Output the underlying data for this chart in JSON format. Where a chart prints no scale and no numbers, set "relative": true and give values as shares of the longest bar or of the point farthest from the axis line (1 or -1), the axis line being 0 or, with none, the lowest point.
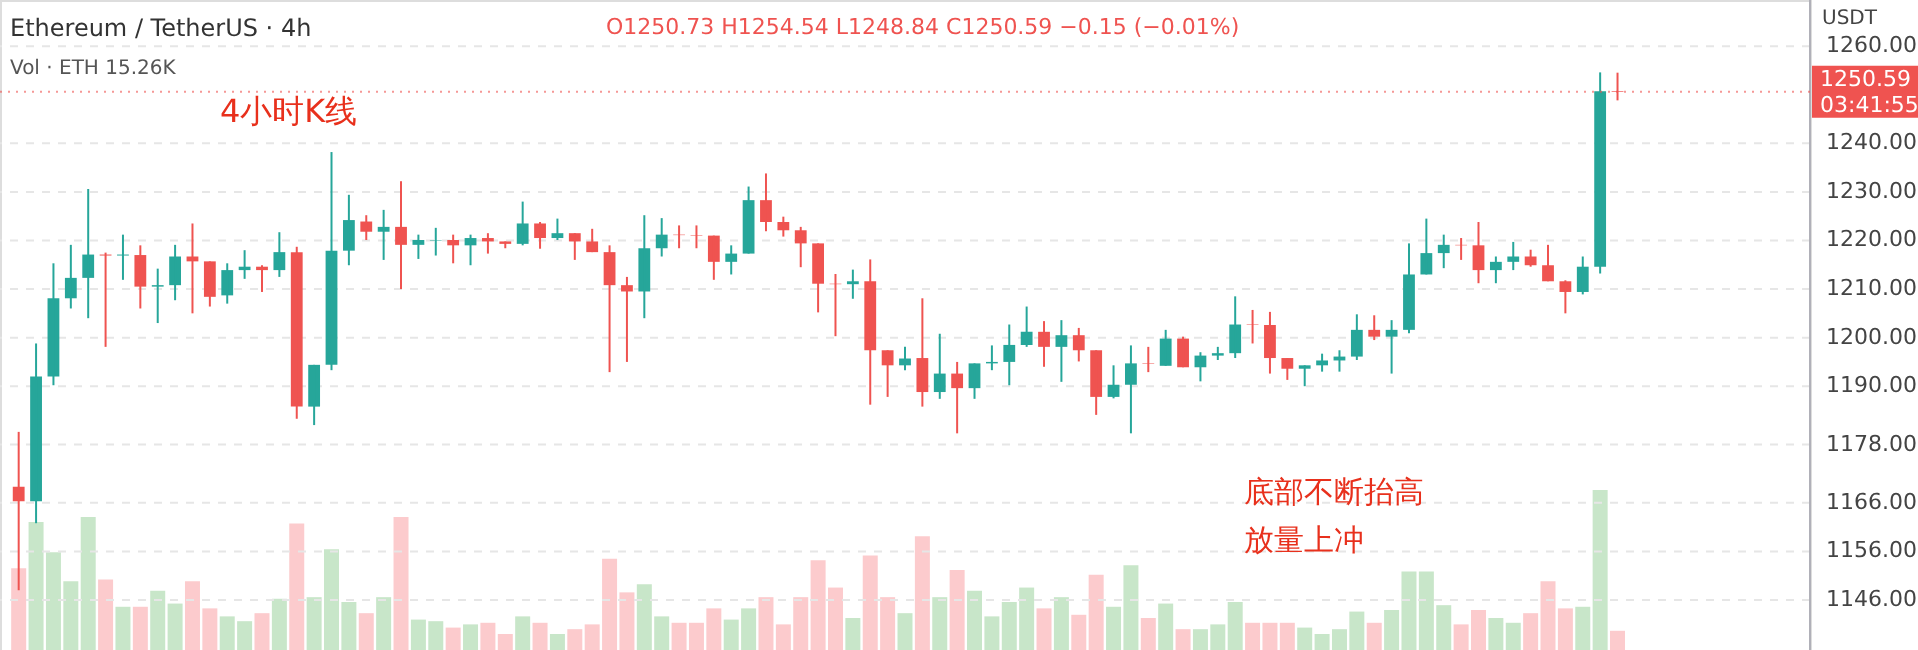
{
  "chart_data": [
    {
      "type": "candlestick",
      "title": "Ethereum / TetherUS · 4h",
      "subtitle": "O1250.73 H1254.54 L1248.84 C1250.59 −0.15 (−0.01%)",
      "ylabel": "USDT",
      "annotations": [
        "4小时K线",
        "底部不断抬高",
        "放量上冲"
      ],
      "categories": [
        null,
        null,
        null,
        null,
        null,
        null,
        null,
        null,
        null,
        null,
        null,
        null,
        null,
        null,
        null,
        null,
        null,
        null,
        null,
        null,
        null,
        null,
        null,
        null,
        null,
        null,
        null,
        null,
        null,
        null,
        null,
        null,
        null,
        null,
        null,
        null,
        null,
        null,
        null,
        null,
        null,
        null,
        null,
        null,
        null,
        null,
        null,
        null,
        null,
        null,
        null,
        null,
        null,
        null,
        null,
        null,
        null,
        null,
        null,
        null,
        null,
        null,
        null,
        null,
        null,
        null,
        null,
        null,
        null,
        null,
        null,
        null,
        null,
        null,
        null,
        null,
        null,
        null,
        null,
        null,
        null,
        null,
        null,
        null,
        null,
        null,
        null,
        null,
        null,
        null,
        null,
        null,
        null,
        null,
        null,
        null,
        null,
        null,
        null,
        null,
        null,
        null,
        null
      ],
      "ylim": [
        1135.7,
        1269.5
      ],
      "yticks": [
        {
          "value": 1146,
          "label": "1146.00"
        },
        {
          "value": 1156,
          "label": "1156.00"
        },
        {
          "value": 1166,
          "label": "1166.00"
        },
        {
          "value": 1178,
          "label": "1178.00"
        },
        {
          "value": 1190,
          "label": "1190.00"
        },
        {
          "value": 1200,
          "label": "1200.00"
        },
        {
          "value": 1210,
          "label": "1210.00"
        },
        {
          "value": 1220,
          "label": "1220.00"
        },
        {
          "value": 1230,
          "label": "1230.00"
        },
        {
          "value": 1240,
          "label": "1240.00"
        },
        {
          "value": 1260,
          "label": "1260.00"
        }
      ],
      "grid": "y",
      "ref_lines": [
        {
          "axis": "y",
          "value": 1250.59,
          "label": "1250.59 03:41:55",
          "color": "#ef5350",
          "line_style": "dotted"
        }
      ],
      "series": [
        {
          "colors": [
            "#ef5350",
            "#26a69a",
            "#26a69a",
            "#26a69a",
            "#26a69a",
            "#ef5350",
            "#26a69a",
            "#ef5350",
            "#26a69a",
            "#26a69a",
            "#ef5350",
            "#ef5350",
            "#26a69a",
            "#26a69a",
            "#ef5350",
            "#26a69a",
            "#ef5350",
            "#26a69a",
            "#26a69a",
            "#26a69a",
            "#ef5350",
            "#26a69a",
            "#ef5350",
            "#26a69a",
            "#26a69a",
            "#ef5350",
            "#26a69a",
            "#ef5350",
            "#ef5350",
            "#26a69a",
            "#ef5350",
            "#26a69a",
            "#ef5350",
            "#ef5350",
            "#ef5350",
            "#ef5350",
            "#26a69a",
            "#26a69a",
            "#ef5350",
            "#ef5350",
            "#ef5350",
            "#26a69a",
            "#26a69a",
            "#ef5350",
            "#ef5350",
            "#ef5350",
            "#ef5350",
            "#ef5350",
            "#26a69a",
            "#ef5350",
            "#ef5350",
            "#26a69a",
            "#ef5350",
            "#26a69a",
            "#ef5350",
            "#26a69a",
            "#26a69a",
            "#26a69a",
            "#26a69a",
            "#ef5350",
            "#26a69a",
            "#ef5350",
            "#ef5350",
            "#26a69a",
            "#26a69a",
            "#ef5350",
            "#26a69a",
            "#ef5350",
            "#26a69a",
            "#26a69a",
            "#26a69a",
            "#ef5350",
            "#ef5350",
            "#ef5350",
            "#26a69a",
            "#26a69a",
            "#26a69a",
            "#26a69a",
            "#ef5350",
            "#26a69a",
            "#26a69a",
            "#26a69a",
            "#26a69a",
            "#ef5350",
            "#ef5350",
            "#26a69a",
            "#26a69a",
            "#ef5350",
            "#ef5350",
            "#ef5350",
            "#26a69a",
            "#26a69a",
            "#ef5350",
            null,
            null,
            null,
            null,
            null,
            null,
            null,
            null,
            null,
            null
          ],
          "ohlc": [
            [
              1169.3,
              1180.6,
              1148,
              1166.3
            ],
            [
              1166.3,
              1198.8,
              1161.8,
              1192
            ],
            [
              1192,
              1215.3,
              1190.2,
              1208.1
            ],
            [
              1208.1,
              1219.1,
              1206,
              1212.3
            ],
            [
              1212.3,
              1230.6,
              1204,
              1217.1
            ],
            [
              1217.1,
              1217.5,
              1198.1,
              1216.9
            ],
            [
              1216.9,
              1221.2,
              1211.9,
              1217.1
            ],
            [
              1217,
              1219,
              1206,
              1210.5
            ],
            [
              1210.5,
              1214.2,
              1203,
              1210.8
            ],
            [
              1210.8,
              1219.1,
              1207.7,
              1216.7
            ],
            [
              1216.7,
              1223.5,
              1205,
              1215.7
            ],
            [
              1215.7,
              1215.7,
              1206.4,
              1208.4
            ],
            [
              1208.7,
              1215.3,
              1207,
              1213.9
            ],
            [
              1213.9,
              1218,
              1212.1,
              1214.6
            ],
            [
              1214.6,
              1214.9,
              1209.4,
              1213.9
            ],
            [
              1213.9,
              1221.7,
              1212.5,
              1217.6
            ],
            [
              1217.6,
              1218.7,
              1183.3,
              1185.8
            ],
            [
              1185.8,
              1194.4,
              1182,
              1194.4
            ],
            [
              1194.4,
              1238.2,
              1193.3,
              1217.9
            ],
            [
              1217.9,
              1229.4,
              1214.9,
              1224.2
            ],
            [
              1223.9,
              1225.2,
              1220.1,
              1221.8
            ],
            [
              1221.8,
              1226.3,
              1216,
              1222.8
            ],
            [
              1222.8,
              1232.2,
              1210,
              1219.1
            ],
            [
              1219.1,
              1221.2,
              1216.2,
              1220.1
            ],
            [
              1220,
              1222.6,
              1216.9,
              1220.1
            ],
            [
              1220.1,
              1221.2,
              1215.3,
              1219
            ],
            [
              1219,
              1221.2,
              1214.9,
              1220.5
            ],
            [
              1220.5,
              1221.5,
              1217.3,
              1219.8
            ],
            [
              1219.8,
              1219.8,
              1218.4,
              1219.3
            ],
            [
              1219.3,
              1228,
              1219,
              1223.5
            ],
            [
              1223.5,
              1223.8,
              1218.3,
              1220.5
            ],
            [
              1220.5,
              1224.5,
              1220.1,
              1221.5
            ],
            [
              1221.5,
              1221.5,
              1216,
              1219.8
            ],
            [
              1219.8,
              1222.4,
              1217.6,
              1217.6
            ],
            [
              1217.6,
              1219,
              1192.9,
              1210.8
            ],
            [
              1210.8,
              1212.5,
              1195,
              1209.5
            ],
            [
              1209.5,
              1225.2,
              1204,
              1218.4
            ],
            [
              1218.4,
              1224.6,
              1216.7,
              1221.2
            ],
            [
              1221.2,
              1223.1,
              1218.4,
              1221.1
            ],
            [
              1221.1,
              1223.1,
              1218.4,
              1221
            ],
            [
              1221,
              1221,
              1211.9,
              1215.6
            ],
            [
              1215.6,
              1219,
              1213,
              1217.3
            ],
            [
              1217.3,
              1231.1,
              1217.3,
              1228.3
            ],
            [
              1228.3,
              1233.8,
              1221.9,
              1223.8
            ],
            [
              1223.8,
              1224.9,
              1220.8,
              1222.1
            ],
            [
              1222.1,
              1222.8,
              1214.5,
              1219.4
            ],
            [
              1219.4,
              1219.4,
              1205.2,
              1211.1
            ],
            [
              1211.1,
              1213.1,
              1200.3,
              1211
            ],
            [
              1211,
              1214,
              1208,
              1211.6
            ],
            [
              1211.6,
              1216.1,
              1186.2,
              1197.4
            ],
            [
              1197.4,
              1197.4,
              1187.8,
              1194.3
            ],
            [
              1194.3,
              1198.1,
              1193.3,
              1195.7
            ],
            [
              1195.8,
              1208.1,
              1185.8,
              1188.8
            ],
            [
              1188.8,
              1200.8,
              1187.4,
              1192.6
            ],
            [
              1192.6,
              1195,
              1180.3,
              1189.6
            ],
            [
              1189.6,
              1194.7,
              1187.4,
              1194.7
            ],
            [
              1194.7,
              1198.4,
              1193.3,
              1195
            ],
            [
              1195,
              1202.7,
              1190.2,
              1198.5
            ],
            [
              1198.5,
              1206.4,
              1198.1,
              1201.2
            ],
            [
              1201.2,
              1203.4,
              1194,
              1198.1
            ],
            [
              1198.1,
              1203.6,
              1190.9,
              1200.5
            ],
            [
              1200.5,
              1202,
              1195.1,
              1197.4
            ],
            [
              1197.4,
              1197.4,
              1184.1,
              1187.8
            ],
            [
              1187.8,
              1194.3,
              1187.5,
              1190.3
            ],
            [
              1190.3,
              1198.4,
              1180.3,
              1194.7
            ],
            [
              1194.7,
              1198.1,
              1192.9,
              1194.6
            ],
            [
              1194.2,
              1201.6,
              1194.2,
              1199.8
            ],
            [
              1199.8,
              1200.2,
              1193.9,
              1193.9
            ],
            [
              1193.9,
              1197,
              1191,
              1196.3
            ],
            [
              1196.3,
              1198.1,
              1195.4,
              1196.8
            ],
            [
              1196.8,
              1208.5,
              1195.8,
              1202.7
            ],
            [
              1202.7,
              1205.7,
              1198.8,
              1202.6
            ],
            [
              1202.6,
              1205.3,
              1192.6,
              1195.8
            ],
            [
              1195.8,
              1195.8,
              1191.3,
              1193.6
            ],
            [
              1193.6,
              1194.3,
              1190,
              1194.3
            ],
            [
              1194.3,
              1196.7,
              1193,
              1195.3
            ],
            [
              1195.3,
              1197.4,
              1193,
              1196.1
            ],
            [
              1196.1,
              1204.8,
              1195.4,
              1201.6
            ],
            [
              1201.6,
              1204.6,
              1199.5,
              1200.2
            ],
            [
              1200.2,
              1203.6,
              1192.6,
              1201.6
            ],
            [
              1201.6,
              1219.4,
              1200.9,
              1213
            ],
            [
              1213,
              1224.5,
              1213,
              1217.4
            ],
            [
              1217.4,
              1221.2,
              1214.3,
              1219.1
            ],
            [
              1219.1,
              1220.5,
              1216,
              1219
            ],
            [
              1219,
              1223.8,
              1211.2,
              1213.9
            ],
            [
              1213.9,
              1216.7,
              1211.2,
              1215.6
            ],
            [
              1215.6,
              1219.7,
              1213.9,
              1216.7
            ],
            [
              1216.7,
              1218.1,
              1214.6,
              1214.9
            ],
            [
              1214.9,
              1219.1,
              1211.6,
              1211.6
            ],
            [
              1211.6,
              1211.8,
              1205,
              1209.4
            ],
            [
              1209.4,
              1216.7,
              1208.9,
              1214.6
            ],
            [
              1214.6,
              1254.6,
              1213.2,
              1250.73
            ],
            [
              1250.73,
              1254.54,
              1248.84,
              1250.59
            ],
            null,
            null,
            null,
            null,
            null,
            null,
            null,
            null,
            null,
            null
          ]
        }
      ]
    },
    {
      "type": "bar",
      "relative": true,
      "annotations": [
        "Vol · ETH 15.26K"
      ],
      "categories": [
        null,
        null,
        null,
        null,
        null,
        null,
        null,
        null,
        null,
        null,
        null,
        null,
        null,
        null,
        null,
        null,
        null,
        null,
        null,
        null,
        null,
        null,
        null,
        null,
        null,
        null,
        null,
        null,
        null,
        null,
        null,
        null,
        null,
        null,
        null,
        null,
        null,
        null,
        null,
        null,
        null,
        null,
        null,
        null,
        null,
        null,
        null,
        null,
        null,
        null,
        null,
        null,
        null,
        null,
        null,
        null,
        null,
        null,
        null,
        null,
        null,
        null,
        null,
        null,
        null,
        null,
        null,
        null,
        null,
        null,
        null,
        null,
        null,
        null,
        null,
        null,
        null,
        null,
        null,
        null,
        null,
        null,
        null,
        null,
        null,
        null,
        null,
        null,
        null,
        null,
        null,
        null,
        null,
        null,
        null,
        null,
        null,
        null,
        null,
        null,
        null,
        null,
        null
      ],
      "values": [
        0.51,
        0.8,
        0.61,
        0.43,
        0.83,
        0.44,
        0.27,
        0.27,
        0.37,
        0.29,
        0.43,
        0.26,
        0.21,
        0.18,
        0.23,
        0.32,
        0.79,
        0.33,
        0.63,
        0.3,
        0.23,
        0.33,
        0.83,
        0.19,
        0.18,
        0.14,
        0.16,
        0.17,
        0.1,
        0.21,
        0.17,
        0.1,
        0.13,
        0.16,
        0.57,
        0.36,
        0.41,
        0.21,
        0.17,
        0.17,
        0.26,
        0.19,
        0.26,
        0.33,
        0.16,
        0.33,
        0.56,
        0.39,
        0.2,
        0.59,
        0.33,
        0.23,
        0.71,
        0.33,
        0.5,
        0.37,
        0.21,
        0.3,
        0.39,
        0.26,
        0.33,
        0.22,
        0.47,
        0.27,
        0.53,
        0.2,
        0.29,
        0.13,
        0.13,
        0.16,
        0.3,
        0.17,
        0.17,
        0.17,
        0.14,
        0.1,
        0.13,
        0.24,
        0.17,
        0.25,
        0.49,
        0.49,
        0.28,
        0.16,
        0.25,
        0.2,
        0.17,
        0.23,
        0.43,
        0.26,
        0.27,
        1,
        0.12,
        null,
        null,
        null,
        null,
        null,
        null,
        null,
        null,
        null,
        null
      ],
      "colors": [
        "#fccbcd",
        "#c8e6c9",
        "#c8e6c9",
        "#c8e6c9",
        "#c8e6c9",
        "#fccbcd",
        "#c8e6c9",
        "#fccbcd",
        "#c8e6c9",
        "#c8e6c9",
        "#fccbcd",
        "#fccbcd",
        "#c8e6c9",
        "#c8e6c9",
        "#fccbcd",
        "#c8e6c9",
        "#fccbcd",
        "#c8e6c9",
        "#c8e6c9",
        "#c8e6c9",
        "#fccbcd",
        "#c8e6c9",
        "#fccbcd",
        "#c8e6c9",
        "#c8e6c9",
        "#fccbcd",
        "#c8e6c9",
        "#fccbcd",
        "#fccbcd",
        "#c8e6c9",
        "#fccbcd",
        "#c8e6c9",
        "#fccbcd",
        "#fccbcd",
        "#fccbcd",
        "#fccbcd",
        "#c8e6c9",
        "#c8e6c9",
        "#fccbcd",
        "#fccbcd",
        "#fccbcd",
        "#c8e6c9",
        "#c8e6c9",
        "#fccbcd",
        "#fccbcd",
        "#fccbcd",
        "#fccbcd",
        "#fccbcd",
        "#c8e6c9",
        "#fccbcd",
        "#fccbcd",
        "#c8e6c9",
        "#fccbcd",
        "#c8e6c9",
        "#fccbcd",
        "#c8e6c9",
        "#c8e6c9",
        "#c8e6c9",
        "#c8e6c9",
        "#fccbcd",
        "#c8e6c9",
        "#fccbcd",
        "#fccbcd",
        "#c8e6c9",
        "#c8e6c9",
        "#fccbcd",
        "#c8e6c9",
        "#fccbcd",
        "#c8e6c9",
        "#c8e6c9",
        "#c8e6c9",
        "#fccbcd",
        "#fccbcd",
        "#fccbcd",
        "#c8e6c9",
        "#c8e6c9",
        "#c8e6c9",
        "#c8e6c9",
        "#fccbcd",
        "#c8e6c9",
        "#c8e6c9",
        "#c8e6c9",
        "#c8e6c9",
        "#fccbcd",
        "#fccbcd",
        "#c8e6c9",
        "#c8e6c9",
        "#fccbcd",
        "#fccbcd",
        "#fccbcd",
        "#c8e6c9",
        "#c8e6c9",
        "#fccbcd",
        null,
        null,
        null,
        null,
        null,
        null,
        null,
        null,
        null,
        null
      ]
    }
  ]
}
